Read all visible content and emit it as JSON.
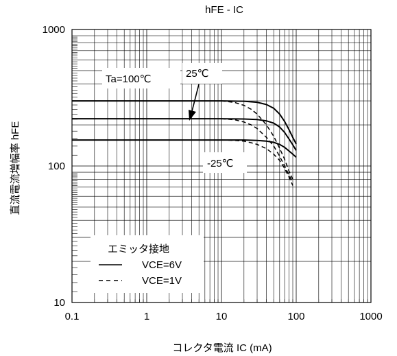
{
  "chart_data": {
    "type": "line",
    "title": "hFE - IC",
    "xlabel": "コレクタ電流  IC (mA)",
    "ylabel": "直流電流増幅率  hFE",
    "x_scale": "log",
    "y_scale": "log",
    "xlim": [
      0.1,
      1000
    ],
    "ylim": [
      10,
      1000
    ],
    "x_ticks": [
      "0.1",
      "1",
      "10",
      "100",
      "1000"
    ],
    "y_ticks": [
      "10",
      "100",
      "1000"
    ],
    "grid": true,
    "annotations": [
      {
        "text": "Ta=100℃",
        "name": "annotation-ta-100c"
      },
      {
        "text": "25℃",
        "name": "annotation-25c"
      },
      {
        "text": "-25℃",
        "name": "annotation-minus-25c"
      }
    ],
    "legend": {
      "title": "エミッタ接地",
      "placement": "bottom-left",
      "entries": [
        {
          "label": "VCE=6V",
          "style": "solid"
        },
        {
          "label": "VCE=1V",
          "style": "dashed"
        }
      ]
    },
    "series": [
      {
        "condition": "Ta=100℃",
        "vce": "VCE=6V",
        "style": "solid",
        "x": [
          0.1,
          10,
          20,
          30,
          40,
          50,
          60,
          70,
          80,
          90,
          100
        ],
        "y": [
          300,
          300,
          298,
          293,
          282,
          265,
          240,
          212,
          185,
          162,
          145
        ]
      },
      {
        "condition": "Ta=25℃",
        "vce": "VCE=6V",
        "style": "solid",
        "x": [
          0.1,
          10,
          20,
          30,
          40,
          50,
          60,
          70,
          80,
          90,
          100
        ],
        "y": [
          222,
          222,
          221,
          219,
          214,
          206,
          193,
          176,
          158,
          143,
          130
        ]
      },
      {
        "condition": "Ta=-25℃",
        "vce": "VCE=6V",
        "style": "solid",
        "x": [
          0.1,
          10,
          20,
          30,
          40,
          50,
          60,
          70,
          80,
          90,
          100
        ],
        "y": [
          155,
          155,
          155,
          154,
          152,
          149,
          144,
          137,
          129,
          122,
          116
        ]
      },
      {
        "condition": "Ta=100℃",
        "vce": "VCE=1V",
        "style": "dashed",
        "x": [
          10,
          15,
          20,
          25,
          30,
          40,
          50,
          60,
          70,
          80,
          90
        ],
        "y": [
          300,
          292,
          278,
          260,
          240,
          200,
          165,
          135,
          112,
          92,
          80
        ]
      },
      {
        "condition": "Ta=25℃",
        "vce": "VCE=1V",
        "style": "dashed",
        "x": [
          10,
          15,
          20,
          25,
          30,
          40,
          50,
          60,
          70,
          80,
          90
        ],
        "y": [
          222,
          218,
          210,
          200,
          188,
          162,
          140,
          118,
          100,
          86,
          76
        ]
      },
      {
        "condition": "Ta=-25℃",
        "vce": "VCE=1V",
        "style": "dashed",
        "x": [
          10,
          15,
          20,
          25,
          30,
          40,
          50,
          60,
          70,
          80,
          90
        ],
        "y": [
          155,
          154,
          152,
          148,
          144,
          134,
          122,
          110,
          96,
          83,
          72
        ]
      }
    ]
  }
}
